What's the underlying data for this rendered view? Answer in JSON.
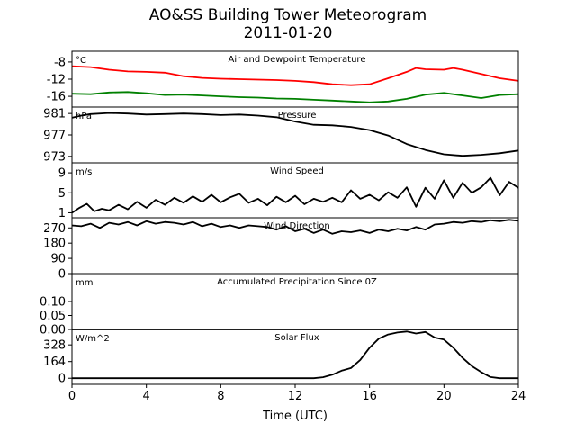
{
  "figure": {
    "title": "AO&SS Building Tower Meteorogram",
    "subtitle": "2011-01-20",
    "xlabel": "Time (UTC)"
  },
  "chart_data": {
    "type": "line",
    "x_axis": {
      "label": "Time (UTC)",
      "range": [
        0,
        24
      ],
      "ticks": [
        0,
        4,
        8,
        12,
        16,
        20,
        24
      ]
    },
    "panels": [
      {
        "name": "temperature",
        "title": "Air and Dewpoint Temperature",
        "unit": "°C",
        "ylim": [
          -18.5,
          -5.5
        ],
        "yticks": [
          -8,
          -12,
          -16
        ],
        "series": [
          {
            "name": "Air Temperature",
            "color": "#ff0000",
            "x": [
              0,
              1,
              2,
              3,
              4,
              5,
              6,
              7,
              8,
              9,
              10,
              11,
              12,
              13,
              14,
              15,
              16,
              17,
              18,
              18.5,
              19,
              20,
              20.5,
              21,
              22,
              23,
              24
            ],
            "y": [
              -9.0,
              -9.2,
              -9.8,
              -10.2,
              -10.3,
              -10.5,
              -11.3,
              -11.7,
              -11.9,
              -12.0,
              -12.1,
              -12.2,
              -12.4,
              -12.7,
              -13.2,
              -13.4,
              -13.2,
              -11.8,
              -10.3,
              -9.4,
              -9.7,
              -9.8,
              -9.4,
              -9.8,
              -10.8,
              -11.8,
              -12.4
            ]
          },
          {
            "name": "Dewpoint",
            "color": "#008000",
            "x": [
              0,
              1,
              2,
              3,
              4,
              5,
              6,
              7,
              8,
              9,
              10,
              11,
              12,
              13,
              14,
              15,
              16,
              17,
              18,
              19,
              20,
              21,
              22,
              23,
              24
            ],
            "y": [
              -15.4,
              -15.5,
              -15.1,
              -15.0,
              -15.3,
              -15.7,
              -15.6,
              -15.8,
              -16.0,
              -16.2,
              -16.3,
              -16.5,
              -16.6,
              -16.8,
              -17.0,
              -17.2,
              -17.4,
              -17.2,
              -16.6,
              -15.6,
              -15.2,
              -15.8,
              -16.4,
              -15.7,
              -15.5
            ]
          }
        ]
      },
      {
        "name": "pressure",
        "title": "Pressure",
        "unit": "hPa",
        "ylim": [
          971.8,
          982.2
        ],
        "yticks": [
          981,
          977,
          973
        ],
        "series": [
          {
            "name": "Pressure",
            "color": "#000000",
            "x": [
              0,
              0.5,
              1,
              2,
              3,
              4,
              5,
              6,
              7,
              8,
              9,
              10,
              11,
              12,
              13,
              14,
              15,
              16,
              17,
              18,
              19,
              20,
              21,
              22,
              23,
              24
            ],
            "y": [
              980.2,
              980.6,
              980.9,
              981.1,
              981.0,
              980.8,
              980.9,
              981.0,
              980.9,
              980.7,
              980.8,
              980.6,
              980.3,
              979.5,
              978.9,
              978.8,
              978.5,
              977.9,
              976.9,
              975.3,
              974.2,
              973.4,
              973.1,
              973.3,
              973.6,
              974.1
            ]
          }
        ]
      },
      {
        "name": "wind_speed",
        "title": "Wind Speed",
        "unit": "m/s",
        "ylim": [
          0,
          11
        ],
        "yticks": [
          9,
          5,
          1
        ],
        "series": [
          {
            "name": "Wind Speed",
            "color": "#000000",
            "x": [
              0,
              0.4,
              0.8,
              1.2,
              1.6,
              2,
              2.5,
              3,
              3.5,
              4,
              4.5,
              5,
              5.5,
              6,
              6.5,
              7,
              7.5,
              8,
              8.5,
              9,
              9.5,
              10,
              10.5,
              11,
              11.5,
              12,
              12.5,
              13,
              13.5,
              14,
              14.5,
              15,
              15.5,
              16,
              16.5,
              17,
              17.5,
              18,
              18.5,
              19,
              19.5,
              20,
              20.5,
              21,
              21.5,
              22,
              22.5,
              23,
              23.5,
              24
            ],
            "y": [
              1.0,
              2.0,
              2.8,
              1.3,
              1.8,
              1.5,
              2.6,
              1.7,
              3.2,
              2.0,
              3.6,
              2.6,
              4.0,
              3.0,
              4.3,
              3.2,
              4.6,
              3.1,
              4.1,
              4.8,
              3.0,
              3.8,
              2.5,
              4.2,
              3.1,
              4.4,
              2.7,
              3.8,
              3.2,
              4.0,
              3.1,
              5.5,
              3.8,
              4.6,
              3.5,
              5.1,
              4.0,
              6.1,
              2.2,
              6.0,
              3.8,
              7.5,
              4.0,
              7.0,
              5.0,
              6.1,
              8.0,
              4.5,
              7.2,
              6.0
            ]
          }
        ]
      },
      {
        "name": "wind_direction",
        "title": "Wind Direction",
        "unit": "",
        "ylim": [
          0,
          330
        ],
        "yticks": [
          270,
          180,
          90,
          0
        ],
        "series": [
          {
            "name": "Wind Direction",
            "color": "#000000",
            "x": [
              0,
              0.5,
              1,
              1.5,
              2,
              2.5,
              3,
              3.5,
              4,
              4.5,
              5,
              5.5,
              6,
              6.5,
              7,
              7.5,
              8,
              8.5,
              9,
              9.5,
              10,
              10.5,
              11,
              11.5,
              12,
              12.5,
              13,
              13.5,
              14,
              14.5,
              15,
              15.5,
              16,
              16.5,
              17,
              17.5,
              18,
              18.5,
              19,
              19.5,
              20,
              20.5,
              21,
              21.5,
              22,
              22.5,
              23,
              23.5,
              24
            ],
            "y": [
              285,
              280,
              295,
              270,
              300,
              290,
              305,
              285,
              310,
              295,
              305,
              300,
              290,
              305,
              280,
              295,
              275,
              285,
              270,
              285,
              280,
              275,
              260,
              280,
              250,
              265,
              240,
              260,
              235,
              250,
              245,
              255,
              240,
              260,
              250,
              265,
              255,
              275,
              260,
              290,
              295,
              305,
              300,
              310,
              305,
              315,
              310,
              318,
              312
            ]
          }
        ]
      },
      {
        "name": "precipitation",
        "title": "Accumulated Precipitation Since 0Z",
        "unit": "mm",
        "ylim": [
          0,
          0.2
        ],
        "yticks": [
          0.1,
          0.05,
          0.0
        ],
        "series": [
          {
            "name": "Accumulated Precipitation",
            "color": "#000000",
            "x": [
              0,
              24
            ],
            "y": [
              0,
              0
            ]
          }
        ]
      },
      {
        "name": "solar",
        "title": "Solar Flux",
        "unit": "W/m^2",
        "ylim": [
          -60,
          480
        ],
        "yticks": [
          328,
          164,
          0
        ],
        "series": [
          {
            "name": "Solar Flux",
            "color": "#000000",
            "x": [
              0,
              13,
              13.5,
              14,
              14.5,
              15,
              15.5,
              16,
              16.5,
              17,
              17.5,
              18,
              18.5,
              19,
              19.5,
              20,
              20.5,
              21,
              21.5,
              22,
              22.5,
              23,
              24
            ],
            "y": [
              0,
              0,
              10,
              35,
              75,
              100,
              180,
              300,
              390,
              430,
              450,
              460,
              440,
              455,
              400,
              380,
              300,
              200,
              120,
              60,
              12,
              0,
              0
            ]
          }
        ]
      }
    ]
  }
}
